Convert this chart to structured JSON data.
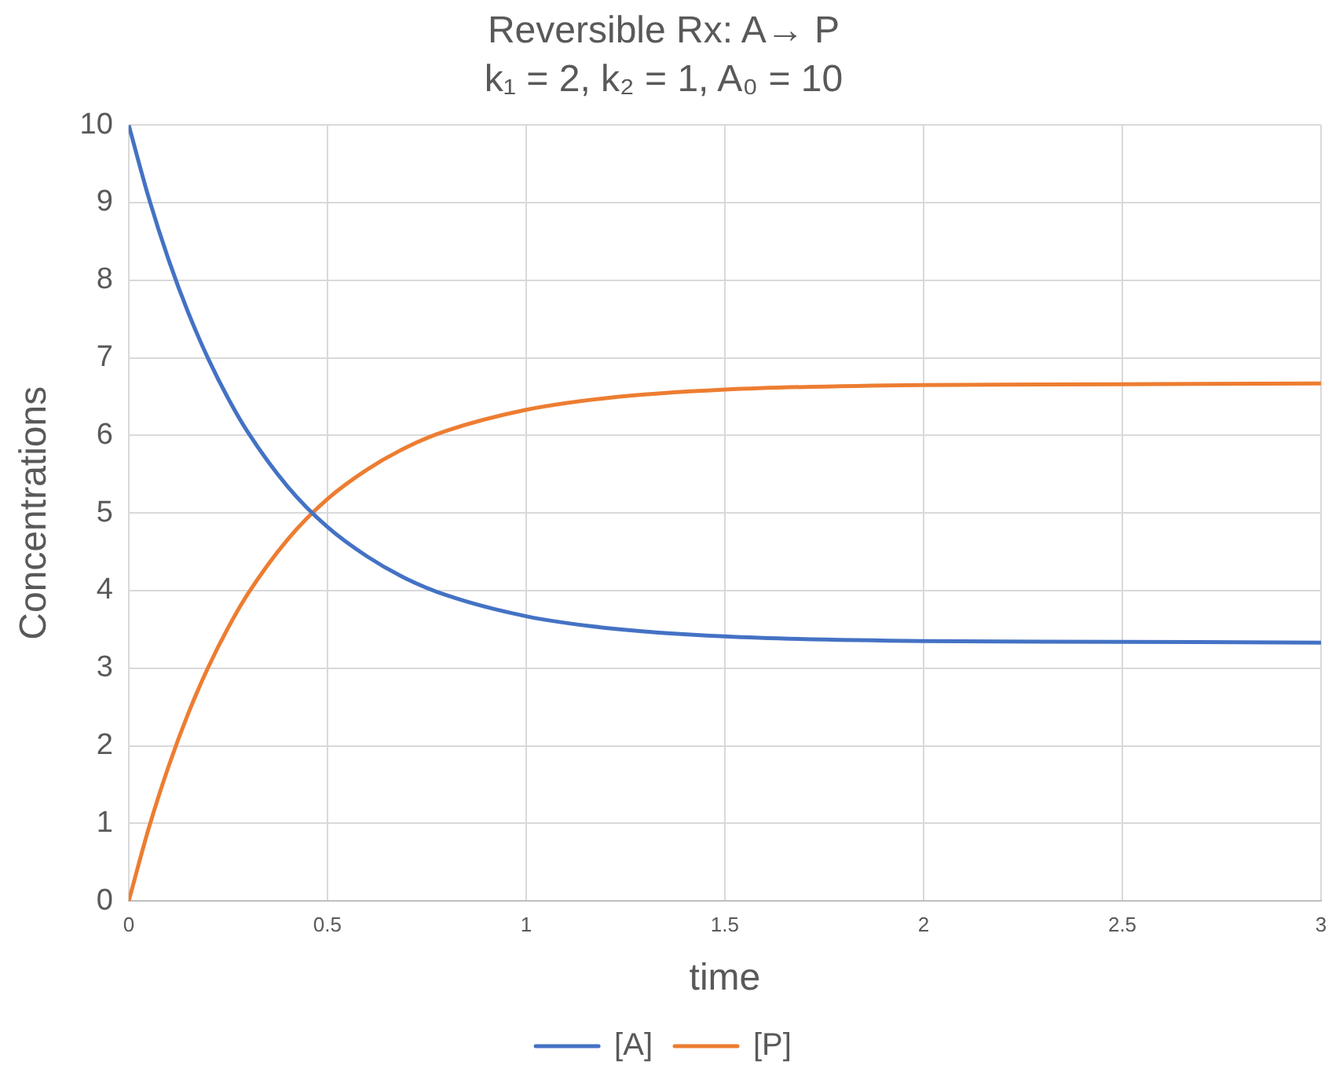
{
  "chart_data": {
    "type": "line",
    "title": "Reversible Rx: A→ P",
    "subtitle": "k₁ = 2, k₂ = 1, A₀ = 10",
    "xlabel": "time",
    "ylabel": "Concentrations",
    "x": [
      0,
      0.05,
      0.1,
      0.15,
      0.2,
      0.25,
      0.3,
      0.4,
      0.5,
      0.6,
      0.7,
      0.8,
      1,
      1.2,
      1.5,
      2,
      2.5,
      3
    ],
    "series": [
      {
        "name": "[A]",
        "color": "#4472c4",
        "values": [
          10,
          9.07,
          8.27,
          7.58,
          6.99,
          6.48,
          6.04,
          5.34,
          4.82,
          4.44,
          4.15,
          3.94,
          3.67,
          3.52,
          3.41,
          3.35,
          3.34,
          3.33
        ]
      },
      {
        "name": "[P]",
        "color": "#ed7d31",
        "values": [
          0,
          0.93,
          1.73,
          2.42,
          3.01,
          3.52,
          3.96,
          4.66,
          5.18,
          5.56,
          5.85,
          6.06,
          6.33,
          6.48,
          6.59,
          6.65,
          6.66,
          6.67
        ]
      }
    ],
    "xlim": [
      0,
      3
    ],
    "xticks": [
      0,
      0.5,
      1,
      1.5,
      2,
      2.5,
      3
    ],
    "ylim": [
      0,
      10
    ],
    "yticks": [
      0,
      1,
      2,
      3,
      4,
      5,
      6,
      7,
      8,
      9,
      10
    ],
    "grid": true,
    "legend": "bottom",
    "marker": "none",
    "line_style": "solid"
  }
}
